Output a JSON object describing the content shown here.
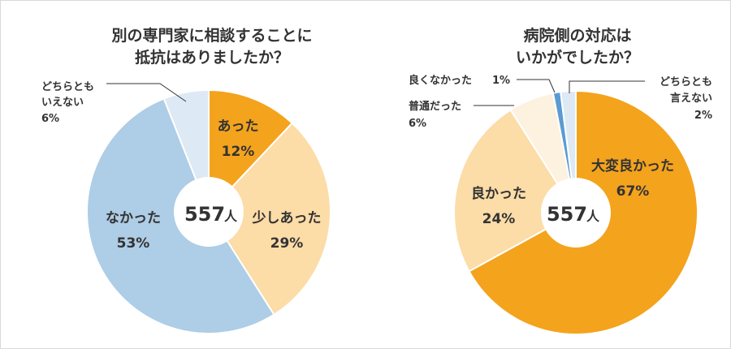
{
  "chart_data": [
    {
      "type": "pie",
      "title_lines": [
        "別の専門家に相談することに",
        "抵抗はありましたか？"
      ],
      "center": {
        "value": "557",
        "unit": "人"
      },
      "slices": [
        {
          "label": "あった",
          "value": 12,
          "value_text": "12%",
          "color": "#f4a31d",
          "label_placement": "inside"
        },
        {
          "label": "少しあった",
          "value": 29,
          "value_text": "29%",
          "color": "#fcdca7",
          "label_placement": "inside"
        },
        {
          "label": "なかった",
          "value": 53,
          "value_text": "53%",
          "color": "#aecde6",
          "label_placement": "inside"
        },
        {
          "label_lines": [
            "どちらとも",
            "いえない"
          ],
          "value": 6,
          "value_text": "6%",
          "color": "#dde9f4",
          "label_placement": "outside-left"
        }
      ]
    },
    {
      "type": "pie",
      "title_lines": [
        "病院側の対応は",
        "いかがでしたか？"
      ],
      "center": {
        "value": "557",
        "unit": "人"
      },
      "slices": [
        {
          "label": "大変良かった",
          "value": 67,
          "value_text": "67%",
          "color": "#f4a31d",
          "label_placement": "inside"
        },
        {
          "label": "良かった",
          "value": 24,
          "value_text": "24%",
          "color": "#fcdca7",
          "label_placement": "inside"
        },
        {
          "label": "普通だった",
          "value": 6,
          "value_text": "6%",
          "color": "#fdf1df",
          "label_placement": "outside-left"
        },
        {
          "label": "良くなかった",
          "value": 1,
          "value_text": "1%",
          "color": "#5b9bd1",
          "label_placement": "outside-left-inline"
        },
        {
          "label_lines": [
            "どちらとも",
            "言えない"
          ],
          "value": 2,
          "value_text": "2%",
          "color": "#dde9f4",
          "label_placement": "outside-right"
        }
      ]
    }
  ]
}
